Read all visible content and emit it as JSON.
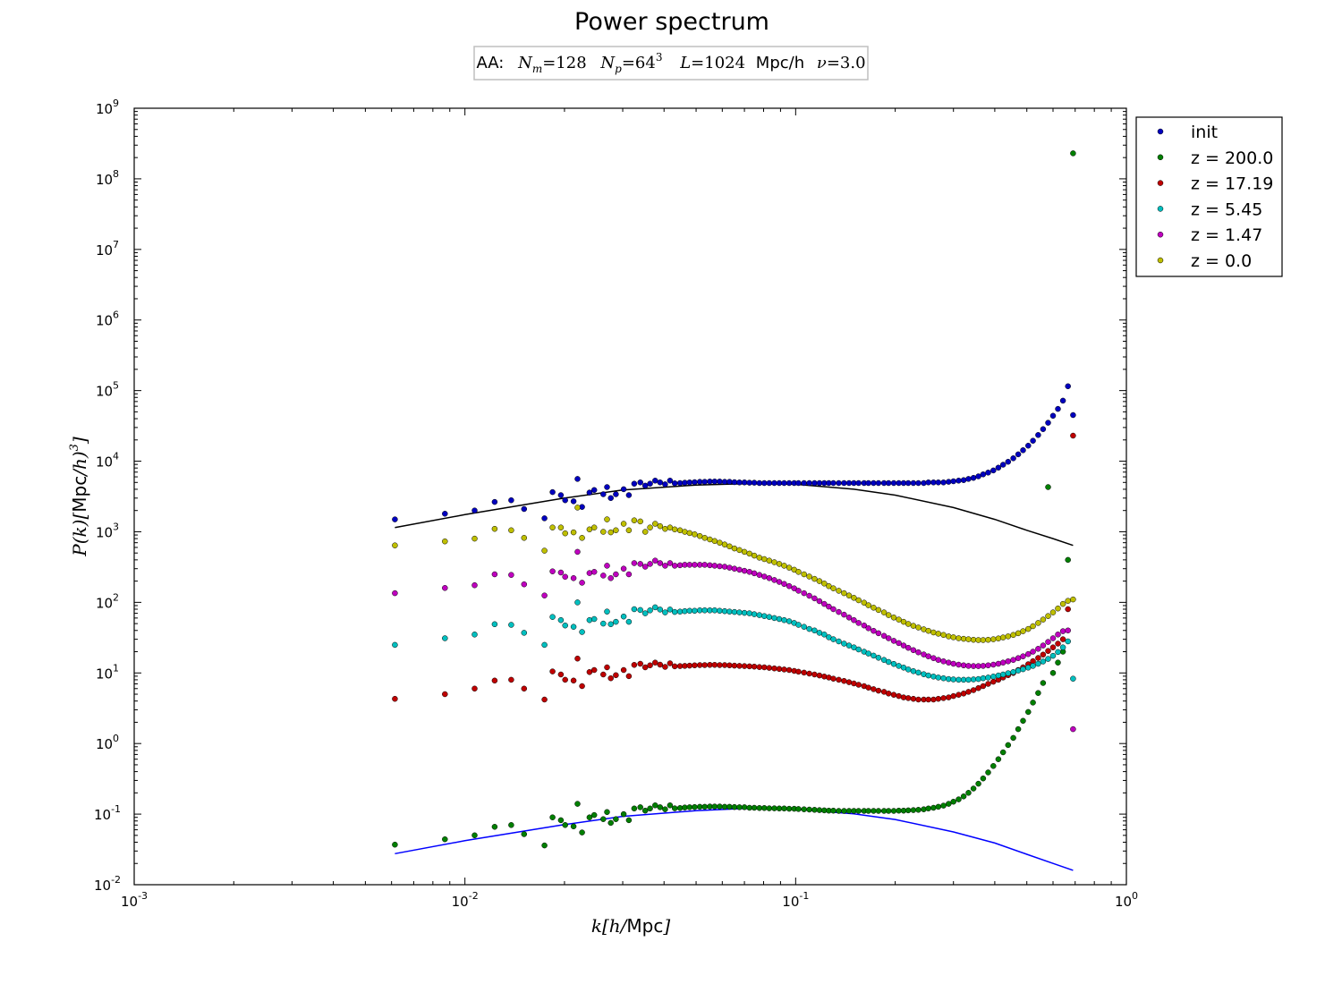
{
  "chart_data": {
    "type": "scatter",
    "title": "Power spectrum",
    "subtitle": {
      "prefix": "AA:",
      "Nm_symbol": "N",
      "Nm_sub": "m",
      "Nm_value": "=128",
      "Np_symbol": "N",
      "Np_sub": "p",
      "Np_value": "=64",
      "Np_exp": "3",
      "L_symbol": "L",
      "L_value": "=1024",
      "L_unit": "Mpc/h",
      "nu_symbol": "ν",
      "nu_value": "=3.0"
    },
    "xlabel": {
      "pre": "k[h/",
      "unit": "Mpc",
      "post": "]"
    },
    "ylabel": {
      "pre": "P(k)[",
      "unit": "Mpc",
      "post": "/h)",
      "exp": "3",
      "close": "]"
    },
    "xscale": "log",
    "yscale": "log",
    "xlim": [
      0.001,
      1
    ],
    "ylim": [
      0.01,
      1000000000
    ],
    "x_ticks": [
      {
        "base": "10",
        "exp": "-3",
        "value": 0.001
      },
      {
        "base": "10",
        "exp": "-2",
        "value": 0.01
      },
      {
        "base": "10",
        "exp": "-1",
        "value": 0.1
      },
      {
        "base": "10",
        "exp": "0",
        "value": 1
      }
    ],
    "y_ticks": [
      {
        "base": "10",
        "exp": "-2",
        "value": 0.01
      },
      {
        "base": "10",
        "exp": "-1",
        "value": 0.1
      },
      {
        "base": "10",
        "exp": "0",
        "value": 1
      },
      {
        "base": "10",
        "exp": "1",
        "value": 10
      },
      {
        "base": "10",
        "exp": "2",
        "value": 100
      },
      {
        "base": "10",
        "exp": "3",
        "value": 1000
      },
      {
        "base": "10",
        "exp": "4",
        "value": 10000
      },
      {
        "base": "10",
        "exp": "5",
        "value": 100000
      },
      {
        "base": "10",
        "exp": "6",
        "value": 1000000
      },
      {
        "base": "10",
        "exp": "7",
        "value": 10000000
      },
      {
        "base": "10",
        "exp": "8",
        "value": 100000000
      },
      {
        "base": "10",
        "exp": "9",
        "value": 1000000000
      }
    ],
    "grid": false,
    "legend_position": "outside-right-top",
    "legend": [
      "init",
      "z = 200.0",
      "z = 17.19",
      "z = 5.45",
      "z = 1.47",
      "z = 0.0"
    ],
    "k_values": [
      0.00614,
      0.0087,
      0.0107,
      0.0123,
      0.0138,
      0.0151,
      0.0174,
      0.0184,
      0.0195,
      0.0201,
      0.0213,
      0.0219,
      0.0226,
      0.0238,
      0.0246,
      0.0262,
      0.0269,
      0.0276,
      0.0286,
      0.0302,
      0.0313,
      0.0325,
      0.0339,
      0.0351,
      0.0363,
      0.0376,
      0.0389,
      0.0403,
      0.0417,
      0.0431,
      0.0447,
      0.0462,
      0.0478,
      0.0495,
      0.0513,
      0.0531,
      0.055,
      0.0569,
      0.0589,
      0.061,
      0.0631,
      0.0653,
      0.0676,
      0.07,
      0.0725,
      0.075,
      0.0777,
      0.0804,
      0.0832,
      0.0862,
      0.0892,
      0.0923,
      0.0956,
      0.099,
      0.102,
      0.106,
      0.11,
      0.114,
      0.118,
      0.122,
      0.126,
      0.13,
      0.135,
      0.14,
      0.145,
      0.15,
      0.155,
      0.161,
      0.166,
      0.172,
      0.178,
      0.185,
      0.191,
      0.198,
      0.205,
      0.212,
      0.219,
      0.227,
      0.235,
      0.244,
      0.252,
      0.261,
      0.27,
      0.28,
      0.29,
      0.3,
      0.311,
      0.322,
      0.333,
      0.345,
      0.357,
      0.369,
      0.382,
      0.396,
      0.41,
      0.424,
      0.439,
      0.455,
      0.471,
      0.487,
      0.505,
      0.522,
      0.541,
      0.56,
      0.58,
      0.6,
      0.621,
      0.643,
      0.666,
      0.69
    ],
    "reference_lines": [
      {
        "label": "linear P(k), z = 0 (black)",
        "color": "#000000",
        "x": [
          0.00614,
          0.01,
          0.02,
          0.03,
          0.05,
          0.07,
          0.1,
          0.15,
          0.2,
          0.3,
          0.4,
          0.5,
          0.6,
          0.69
        ],
        "y": [
          1150,
          1750,
          3000,
          3900,
          4600,
          4800,
          4700,
          4000,
          3300,
          2200,
          1500,
          1050,
          800,
          640
        ]
      },
      {
        "label": "linear P(k), z = 200 (blue)",
        "color": "#0000ff",
        "x": [
          0.00614,
          0.01,
          0.02,
          0.03,
          0.05,
          0.07,
          0.1,
          0.15,
          0.2,
          0.3,
          0.4,
          0.5,
          0.6,
          0.69
        ],
        "y": [
          0.0275,
          0.042,
          0.071,
          0.093,
          0.112,
          0.12,
          0.117,
          0.101,
          0.084,
          0.056,
          0.039,
          0.027,
          0.02,
          0.016
        ]
      }
    ],
    "series": [
      {
        "name": "init",
        "color": "#0000bf",
        "values": [
          1500,
          1800,
          2000,
          2650,
          2800,
          2100,
          1550,
          3650,
          3300,
          2800,
          2700,
          5600,
          2250,
          3600,
          3900,
          3400,
          4300,
          3000,
          3400,
          4000,
          3300,
          4800,
          5000,
          4500,
          4800,
          5300,
          5000,
          4700,
          5300,
          4850,
          4900,
          4950,
          5000,
          5050,
          5100,
          5100,
          5150,
          5150,
          5150,
          5100,
          5100,
          5050,
          5000,
          5000,
          4950,
          4950,
          4900,
          4900,
          4900,
          4900,
          4900,
          4900,
          4900,
          4900,
          4900,
          4900,
          4900,
          4900,
          4900,
          4900,
          4900,
          4900,
          4900,
          4900,
          4900,
          4900,
          4900,
          4900,
          4900,
          4900,
          4900,
          4900,
          4900,
          4900,
          4900,
          4900,
          4900,
          4900,
          4900,
          4900,
          5000,
          5000,
          5000,
          5000,
          5100,
          5200,
          5300,
          5400,
          5600,
          5800,
          6100,
          6500,
          6900,
          7400,
          8100,
          8900,
          9800,
          11000,
          12500,
          14300,
          16600,
          19500,
          23500,
          28500,
          35000,
          44000,
          55000,
          72000,
          115000,
          45000
        ]
      },
      {
        "name": "z = 200.0",
        "color": "#007f00",
        "values": [
          0.037,
          0.044,
          0.05,
          0.066,
          0.07,
          0.052,
          0.036,
          0.09,
          0.082,
          0.07,
          0.067,
          0.14,
          0.055,
          0.09,
          0.097,
          0.085,
          0.107,
          0.075,
          0.085,
          0.1,
          0.082,
          0.12,
          0.125,
          0.112,
          0.12,
          0.133,
          0.125,
          0.117,
          0.133,
          0.121,
          0.122,
          0.124,
          0.125,
          0.126,
          0.127,
          0.127,
          0.128,
          0.128,
          0.128,
          0.127,
          0.127,
          0.126,
          0.125,
          0.125,
          0.123,
          0.123,
          0.122,
          0.122,
          0.121,
          0.121,
          0.12,
          0.12,
          0.119,
          0.119,
          0.118,
          0.117,
          0.116,
          0.115,
          0.114,
          0.113,
          0.112,
          0.112,
          0.111,
          0.111,
          0.111,
          0.111,
          0.111,
          0.111,
          0.111,
          0.111,
          0.111,
          0.111,
          0.111,
          0.111,
          0.112,
          0.112,
          0.113,
          0.114,
          0.115,
          0.117,
          0.12,
          0.123,
          0.127,
          0.132,
          0.14,
          0.15,
          0.162,
          0.178,
          0.2,
          0.23,
          0.27,
          0.32,
          0.39,
          0.48,
          0.6,
          0.75,
          0.95,
          1.2,
          1.6,
          2.1,
          2.8,
          3.8,
          5.2,
          7.2,
          4300,
          10,
          14,
          20,
          400,
          230000000
        ]
      },
      {
        "name": "z = 17.19",
        "color": "#bf0000",
        "values": [
          4.3,
          5.0,
          6.0,
          7.8,
          8.0,
          6.0,
          4.2,
          10.5,
          9.5,
          8.0,
          7.8,
          16.0,
          6.5,
          10.3,
          11.0,
          9.5,
          12.0,
          8.4,
          9.3,
          11.0,
          9.0,
          13.0,
          13.5,
          12.0,
          12.8,
          14.0,
          13.1,
          12.2,
          13.7,
          12.4,
          12.5,
          12.6,
          12.7,
          12.8,
          12.9,
          12.9,
          13.0,
          13.0,
          12.9,
          12.9,
          12.8,
          12.7,
          12.6,
          12.5,
          12.4,
          12.3,
          12.1,
          12.0,
          11.8,
          11.6,
          11.4,
          11.2,
          11.0,
          10.7,
          10.4,
          10.1,
          9.8,
          9.5,
          9.2,
          8.9,
          8.6,
          8.3,
          8.0,
          7.7,
          7.4,
          7.1,
          6.8,
          6.5,
          6.2,
          5.9,
          5.6,
          5.4,
          5.1,
          4.9,
          4.7,
          4.5,
          4.4,
          4.3,
          4.2,
          4.2,
          4.2,
          4.2,
          4.3,
          4.4,
          4.5,
          4.7,
          4.9,
          5.1,
          5.4,
          5.7,
          6.1,
          6.5,
          7.0,
          7.5,
          8.0,
          8.6,
          9.3,
          10.0,
          11.0,
          12.0,
          13.3,
          14.7,
          16.3,
          18.2,
          20.5,
          23.0,
          26.0,
          30.0,
          80.0,
          23000
        ]
      },
      {
        "name": "z = 5.45",
        "color": "#00bfbf",
        "values": [
          25,
          31,
          35,
          49,
          48,
          37,
          25,
          62,
          56,
          47,
          45,
          100,
          38,
          56,
          58,
          50,
          74,
          49,
          53,
          63,
          53,
          80,
          78,
          70,
          77,
          85,
          79,
          72,
          79,
          73,
          74,
          75,
          76,
          76,
          77,
          77,
          77,
          77,
          76,
          75,
          74,
          73,
          72,
          71,
          70,
          68,
          66,
          64,
          62,
          60,
          58,
          56,
          54,
          51,
          48,
          45,
          42,
          40,
          37,
          35,
          32,
          30,
          28,
          26,
          24.5,
          23,
          21.5,
          20,
          18.8,
          17.6,
          16.4,
          15.3,
          14.3,
          13.4,
          12.6,
          11.9,
          11.2,
          10.6,
          10.1,
          9.6,
          9.2,
          8.9,
          8.6,
          8.4,
          8.2,
          8.1,
          8.0,
          8.0,
          8.0,
          8.1,
          8.2,
          8.4,
          8.6,
          8.9,
          9.2,
          9.5,
          9.9,
          10.3,
          10.8,
          11.3,
          11.9,
          12.6,
          13.5,
          14.5,
          15.8,
          17.5,
          19.8,
          23.0,
          28.0,
          8.3
        ]
      },
      {
        "name": "z = 1.47",
        "color": "#bf00bf",
        "values": [
          135,
          160,
          175,
          250,
          245,
          180,
          125,
          275,
          265,
          230,
          220,
          520,
          190,
          260,
          270,
          240,
          330,
          220,
          250,
          300,
          250,
          360,
          350,
          320,
          350,
          390,
          360,
          330,
          360,
          330,
          335,
          340,
          340,
          340,
          340,
          340,
          335,
          330,
          325,
          320,
          310,
          300,
          290,
          280,
          270,
          258,
          245,
          232,
          220,
          207,
          195,
          182,
          170,
          158,
          146,
          135,
          124,
          114,
          104,
          95,
          87,
          80,
          73,
          67,
          61,
          56,
          51,
          47,
          43,
          39.5,
          36.5,
          33.5,
          31,
          28.5,
          26.5,
          24.5,
          22.7,
          21.0,
          19.6,
          18.3,
          17.2,
          16.2,
          15.3,
          14.6,
          14.0,
          13.5,
          13.1,
          12.8,
          12.6,
          12.5,
          12.5,
          12.6,
          12.8,
          13.1,
          13.5,
          14.0,
          14.6,
          15.3,
          16.2,
          17.2,
          18.5,
          20.0,
          22.0,
          24.5,
          27.5,
          31.0,
          35.0,
          39.0,
          40.0,
          1.6
        ]
      },
      {
        "name": "z = 0.0",
        "color": "#bfbf00",
        "values": [
          640,
          730,
          800,
          1100,
          1050,
          820,
          540,
          1150,
          1150,
          950,
          980,
          2200,
          820,
          1080,
          1150,
          1000,
          1500,
          980,
          1050,
          1300,
          1050,
          1450,
          1400,
          1000,
          1150,
          1300,
          1200,
          1100,
          1150,
          1080,
          1050,
          1000,
          960,
          920,
          870,
          820,
          780,
          740,
          700,
          660,
          620,
          580,
          550,
          520,
          490,
          460,
          430,
          410,
          390,
          370,
          350,
          330,
          310,
          290,
          270,
          250,
          232,
          215,
          200,
          185,
          170,
          158,
          146,
          135,
          125,
          116,
          107,
          99,
          91,
          84,
          78,
          72,
          66,
          61,
          57,
          53,
          49.5,
          46.5,
          44,
          41.5,
          39.5,
          37.5,
          36,
          34.5,
          33,
          32,
          31,
          30.5,
          30,
          29.5,
          29.2,
          29.2,
          29.5,
          30,
          30.8,
          31.8,
          33,
          34.5,
          36.5,
          39,
          42,
          46,
          51,
          57,
          64,
          72,
          82,
          95,
          105,
          110
        ]
      }
    ]
  }
}
